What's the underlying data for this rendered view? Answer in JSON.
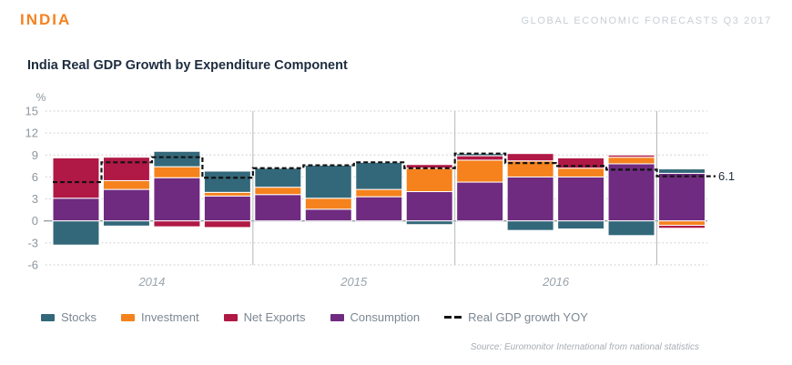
{
  "header": {
    "country": "INDIA",
    "report": "GLOBAL ECONOMIC FORECASTS Q3 2017"
  },
  "chart": {
    "title": "India Real GDP Growth by Expenditure Component",
    "source": "Source: Euromonitor International from national statistics"
  },
  "chart_data": {
    "type": "bar",
    "stacked": true,
    "title": "India Real GDP Growth by Expenditure Component",
    "ylabel": "%",
    "ylim": [
      -6,
      15
    ],
    "yticks": [
      15,
      12,
      9,
      6,
      3,
      0,
      -3,
      -6
    ],
    "grid": "dotted-horizontal",
    "legend_position": "bottom",
    "years": [
      "2014",
      "2015",
      "2016"
    ],
    "bars_per_year": 4,
    "note": "13 quarterly stacked bars, Q1 2014 through Q1 2017",
    "stack_order": [
      "Consumption",
      "Investment",
      "Net Exports",
      "Stocks"
    ],
    "series": [
      {
        "name": "Stocks",
        "color": "#33687A",
        "values": [
          -3.3,
          -0.7,
          2.1,
          2.9,
          2.6,
          4.5,
          3.7,
          -0.5,
          0.3,
          -1.3,
          -1.1,
          -2.0,
          0.6
        ]
      },
      {
        "name": "Investment",
        "color": "#F5821D",
        "values": [
          0.0,
          1.2,
          1.5,
          0.5,
          1.0,
          1.5,
          1.0,
          3.2,
          3.0,
          2.2,
          1.2,
          0.9,
          -0.6
        ]
      },
      {
        "name": "Net Exports",
        "color": "#B01845",
        "values": [
          5.5,
          3.2,
          -0.8,
          -0.9,
          0.0,
          0.0,
          0.0,
          0.5,
          0.6,
          1.0,
          1.4,
          0.3,
          -0.4
        ]
      },
      {
        "name": "Consumption",
        "color": "#6F2B80",
        "values": [
          3.1,
          4.3,
          5.9,
          3.4,
          3.6,
          1.6,
          3.3,
          4.0,
          5.3,
          6.0,
          6.0,
          7.8,
          6.5
        ]
      }
    ],
    "gdp_line": {
      "name": "Real GDP growth YOY",
      "color": "#131313",
      "style": "dashed",
      "values": [
        5.3,
        8.0,
        8.7,
        5.9,
        7.2,
        7.6,
        8.0,
        7.2,
        9.2,
        7.9,
        7.5,
        7.0,
        6.1
      ]
    },
    "annotation": {
      "label": "6.1",
      "value": 6.1
    }
  }
}
